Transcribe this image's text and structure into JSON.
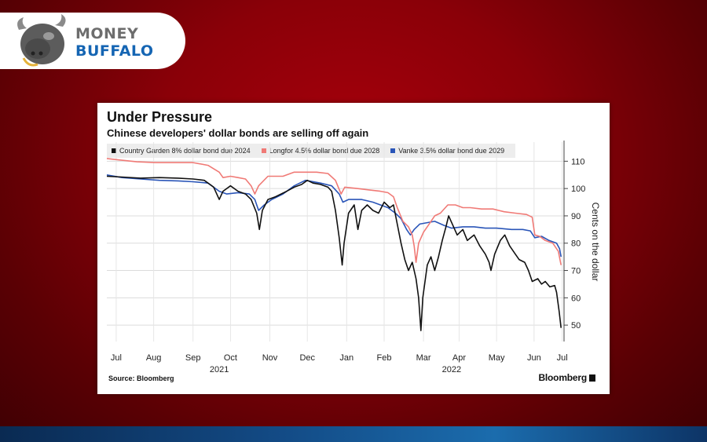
{
  "brand": {
    "line1": "MONEY",
    "line2": "BUFFALO",
    "icon": "buffalo-head-icon"
  },
  "footer": {
    "source": "Source: Bloomberg",
    "publisher": "Bloomberg"
  },
  "chart_data": {
    "type": "line",
    "title": "Under Pressure",
    "subtitle": "Chinese developers' dollar bonds are selling off again",
    "xlabel": "",
    "ylabel": "Cents on the dollar",
    "ylim": [
      44,
      117
    ],
    "xlim": [
      0,
      12.2
    ],
    "y_ticks": [
      50,
      60,
      70,
      80,
      90,
      100,
      110
    ],
    "x_ticks": [
      {
        "x": 0.25,
        "label": "Jul"
      },
      {
        "x": 1.25,
        "label": "Aug"
      },
      {
        "x": 2.3,
        "label": "Sep"
      },
      {
        "x": 3.3,
        "label": "Oct"
      },
      {
        "x": 4.35,
        "label": "Nov"
      },
      {
        "x": 5.35,
        "label": "Dec"
      },
      {
        "x": 6.4,
        "label": "Jan"
      },
      {
        "x": 7.4,
        "label": "Feb"
      },
      {
        "x": 8.45,
        "label": "Mar"
      },
      {
        "x": 9.4,
        "label": "Apr"
      },
      {
        "x": 10.4,
        "label": "May"
      },
      {
        "x": 11.4,
        "label": "Jun"
      },
      {
        "x": 12.15,
        "label": "Jul"
      }
    ],
    "year_labels": [
      {
        "x": 3.0,
        "label": "2021"
      },
      {
        "x": 9.2,
        "label": "2022"
      }
    ],
    "grid": true,
    "legend_position": "top-left",
    "series": [
      {
        "name": "Country Garden 8% dollar bond due 2024",
        "color": "#111111",
        "points": [
          [
            0,
            104.5
          ],
          [
            0.4,
            104.2
          ],
          [
            0.9,
            103.8
          ],
          [
            1.4,
            104
          ],
          [
            1.9,
            103.8
          ],
          [
            2.3,
            103.5
          ],
          [
            2.6,
            103
          ],
          [
            2.85,
            100.5
          ],
          [
            3.0,
            96
          ],
          [
            3.1,
            99
          ],
          [
            3.3,
            101
          ],
          [
            3.5,
            99
          ],
          [
            3.7,
            98
          ],
          [
            3.85,
            96
          ],
          [
            4.0,
            91
          ],
          [
            4.07,
            85
          ],
          [
            4.15,
            92
          ],
          [
            4.3,
            96
          ],
          [
            4.5,
            97
          ],
          [
            4.8,
            99
          ],
          [
            5.0,
            100.5
          ],
          [
            5.2,
            101.5
          ],
          [
            5.35,
            103
          ],
          [
            5.5,
            102
          ],
          [
            5.7,
            101.5
          ],
          [
            5.9,
            100.5
          ],
          [
            6.0,
            99
          ],
          [
            6.1,
            92
          ],
          [
            6.2,
            82
          ],
          [
            6.28,
            72
          ],
          [
            6.33,
            80
          ],
          [
            6.45,
            91
          ],
          [
            6.6,
            94
          ],
          [
            6.7,
            85
          ],
          [
            6.8,
            92
          ],
          [
            6.95,
            94
          ],
          [
            7.1,
            92
          ],
          [
            7.25,
            91
          ],
          [
            7.4,
            95
          ],
          [
            7.55,
            93
          ],
          [
            7.65,
            94
          ],
          [
            7.75,
            87
          ],
          [
            7.85,
            80
          ],
          [
            7.95,
            74
          ],
          [
            8.05,
            70
          ],
          [
            8.15,
            73
          ],
          [
            8.25,
            67
          ],
          [
            8.32,
            60
          ],
          [
            8.38,
            48
          ],
          [
            8.43,
            60
          ],
          [
            8.55,
            72
          ],
          [
            8.65,
            75
          ],
          [
            8.75,
            70
          ],
          [
            8.85,
            75
          ],
          [
            8.95,
            81
          ],
          [
            9.05,
            86
          ],
          [
            9.12,
            90
          ],
          [
            9.22,
            87
          ],
          [
            9.35,
            83
          ],
          [
            9.5,
            85
          ],
          [
            9.62,
            81
          ],
          [
            9.8,
            83
          ],
          [
            9.95,
            79
          ],
          [
            10.1,
            76
          ],
          [
            10.2,
            73
          ],
          [
            10.25,
            70
          ],
          [
            10.35,
            76
          ],
          [
            10.5,
            81
          ],
          [
            10.62,
            83
          ],
          [
            10.75,
            79
          ],
          [
            10.9,
            76
          ],
          [
            11.0,
            74
          ],
          [
            11.15,
            73
          ],
          [
            11.25,
            70
          ],
          [
            11.35,
            66
          ],
          [
            11.5,
            67
          ],
          [
            11.6,
            65
          ],
          [
            11.7,
            66
          ],
          [
            11.82,
            64
          ],
          [
            11.95,
            64.5
          ],
          [
            12.0,
            62
          ],
          [
            12.07,
            55
          ],
          [
            12.12,
            49
          ]
        ]
      },
      {
        "name": "Longfor 4.5% dollar bond due 2028",
        "color": "#f07a76",
        "points": [
          [
            0,
            111
          ],
          [
            0.3,
            110.5
          ],
          [
            0.8,
            109.8
          ],
          [
            1.3,
            109.5
          ],
          [
            1.8,
            109.5
          ],
          [
            2.3,
            109.5
          ],
          [
            2.7,
            108.5
          ],
          [
            3.0,
            106
          ],
          [
            3.1,
            104
          ],
          [
            3.3,
            104.5
          ],
          [
            3.5,
            104
          ],
          [
            3.7,
            103.5
          ],
          [
            3.85,
            101
          ],
          [
            3.95,
            98
          ],
          [
            4.05,
            101
          ],
          [
            4.3,
            104.5
          ],
          [
            4.7,
            104.5
          ],
          [
            5.0,
            106
          ],
          [
            5.3,
            106
          ],
          [
            5.6,
            106
          ],
          [
            5.9,
            105.5
          ],
          [
            6.1,
            103
          ],
          [
            6.25,
            98
          ],
          [
            6.35,
            100.5
          ],
          [
            6.7,
            100
          ],
          [
            7.0,
            99.5
          ],
          [
            7.3,
            99
          ],
          [
            7.5,
            98.5
          ],
          [
            7.65,
            97
          ],
          [
            7.75,
            93
          ],
          [
            7.9,
            88
          ],
          [
            8.05,
            86
          ],
          [
            8.15,
            83
          ],
          [
            8.2,
            79
          ],
          [
            8.25,
            73
          ],
          [
            8.32,
            80
          ],
          [
            8.45,
            84
          ],
          [
            8.6,
            87
          ],
          [
            8.75,
            90
          ],
          [
            8.9,
            91
          ],
          [
            9.1,
            94
          ],
          [
            9.3,
            94
          ],
          [
            9.5,
            93
          ],
          [
            9.7,
            93
          ],
          [
            10.0,
            92.5
          ],
          [
            10.3,
            92.5
          ],
          [
            10.6,
            91.5
          ],
          [
            10.9,
            91
          ],
          [
            11.2,
            90.5
          ],
          [
            11.35,
            89.5
          ],
          [
            11.42,
            83
          ],
          [
            11.55,
            82.5
          ],
          [
            11.7,
            81
          ],
          [
            11.9,
            80
          ],
          [
            12.05,
            77
          ],
          [
            12.12,
            72
          ]
        ]
      },
      {
        "name": "Vanke 3.5% dollar bond due 2029",
        "color": "#2a55b8",
        "points": [
          [
            0,
            105
          ],
          [
            0.4,
            104
          ],
          [
            0.9,
            103.5
          ],
          [
            1.4,
            103
          ],
          [
            1.9,
            102.8
          ],
          [
            2.3,
            102.5
          ],
          [
            2.7,
            102
          ],
          [
            3.0,
            99
          ],
          [
            3.2,
            98
          ],
          [
            3.5,
            98.5
          ],
          [
            3.8,
            98
          ],
          [
            3.95,
            96
          ],
          [
            4.05,
            92
          ],
          [
            4.2,
            94
          ],
          [
            4.4,
            96
          ],
          [
            4.7,
            98
          ],
          [
            5.0,
            101
          ],
          [
            5.3,
            103
          ],
          [
            5.7,
            102
          ],
          [
            6.0,
            101
          ],
          [
            6.2,
            98
          ],
          [
            6.3,
            95
          ],
          [
            6.45,
            96
          ],
          [
            6.8,
            96
          ],
          [
            7.1,
            95
          ],
          [
            7.3,
            94
          ],
          [
            7.5,
            93
          ],
          [
            7.7,
            91
          ],
          [
            7.85,
            89
          ],
          [
            8.0,
            85
          ],
          [
            8.1,
            83
          ],
          [
            8.2,
            85
          ],
          [
            8.35,
            87
          ],
          [
            8.55,
            87.5
          ],
          [
            8.75,
            88
          ],
          [
            9.0,
            86.5
          ],
          [
            9.2,
            85.5
          ],
          [
            9.5,
            86
          ],
          [
            9.8,
            86
          ],
          [
            10.1,
            85.5
          ],
          [
            10.4,
            85.5
          ],
          [
            10.8,
            85
          ],
          [
            11.1,
            85
          ],
          [
            11.3,
            84.5
          ],
          [
            11.42,
            82
          ],
          [
            11.6,
            82.5
          ],
          [
            11.8,
            81
          ],
          [
            12.0,
            80
          ],
          [
            12.08,
            78
          ],
          [
            12.12,
            75
          ]
        ]
      }
    ]
  }
}
